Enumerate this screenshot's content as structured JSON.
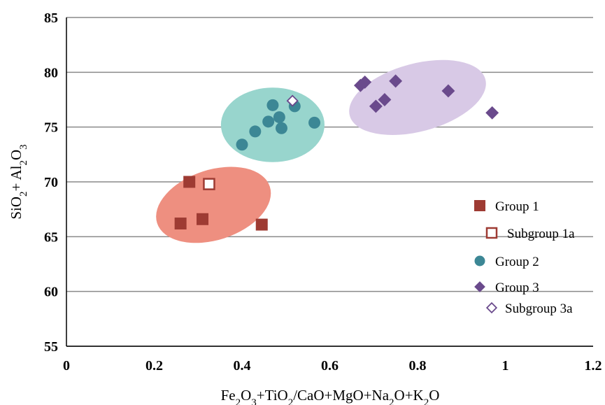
{
  "chart_data": {
    "type": "scatter",
    "title": "",
    "xlabel": "Fe2O3+TiO2/CaO+MgO+Na2O+K2O",
    "ylabel": "SiO2+ Al2O3",
    "xlim": [
      0,
      1.2
    ],
    "ylim": [
      55,
      85
    ],
    "x_ticks": [
      "0",
      "0.2",
      "0.4",
      "0.6",
      "0.8",
      "1",
      "1.2"
    ],
    "y_ticks": [
      "55",
      "60",
      "65",
      "70",
      "75",
      "80",
      "85"
    ],
    "grid": "horizontal",
    "legend_position": "right",
    "series": [
      {
        "name": "Group 1",
        "marker": "filled-square",
        "color": "#9e3b33",
        "points": [
          [
            0.26,
            66.2
          ],
          [
            0.28,
            70.0
          ],
          [
            0.31,
            66.6
          ],
          [
            0.445,
            66.1
          ]
        ]
      },
      {
        "name": "Subgroup 1a",
        "marker": "open-square",
        "color": "#9e3b33",
        "points": [
          [
            0.325,
            69.8
          ]
        ]
      },
      {
        "name": "Group 2",
        "marker": "filled-circle",
        "color": "#3c8795",
        "points": [
          [
            0.4,
            73.4
          ],
          [
            0.43,
            74.6
          ],
          [
            0.46,
            75.5
          ],
          [
            0.47,
            77.0
          ],
          [
            0.485,
            75.9
          ],
          [
            0.49,
            74.9
          ],
          [
            0.52,
            76.9
          ],
          [
            0.565,
            75.4
          ]
        ]
      },
      {
        "name": "Group 3",
        "marker": "filled-diamond",
        "color": "#6a4a8c",
        "points": [
          [
            0.67,
            78.8
          ],
          [
            0.68,
            79.1
          ],
          [
            0.705,
            76.9
          ],
          [
            0.725,
            77.5
          ],
          [
            0.75,
            79.2
          ],
          [
            0.87,
            78.3
          ],
          [
            0.97,
            76.3
          ]
        ]
      },
      {
        "name": "Subgroup 3a",
        "marker": "open-diamond",
        "color": "#6a4a8c",
        "points": [
          [
            0.515,
            77.4
          ]
        ]
      }
    ],
    "clusters": [
      {
        "group": "Group 1",
        "cx": 0.335,
        "cy": 67.9,
        "rx": 0.135,
        "ry": 3.2,
        "angle_deg": 18,
        "color": "#ee8f80"
      },
      {
        "group": "Group 2",
        "cx": 0.47,
        "cy": 75.2,
        "rx": 0.118,
        "ry": 3.4,
        "angle_deg": 0,
        "color": "#98d5cd"
      },
      {
        "group": "Group 3",
        "cx": 0.8,
        "cy": 77.7,
        "rx": 0.16,
        "ry": 3.1,
        "angle_deg": 15,
        "color": "#d8c9e6"
      }
    ]
  }
}
